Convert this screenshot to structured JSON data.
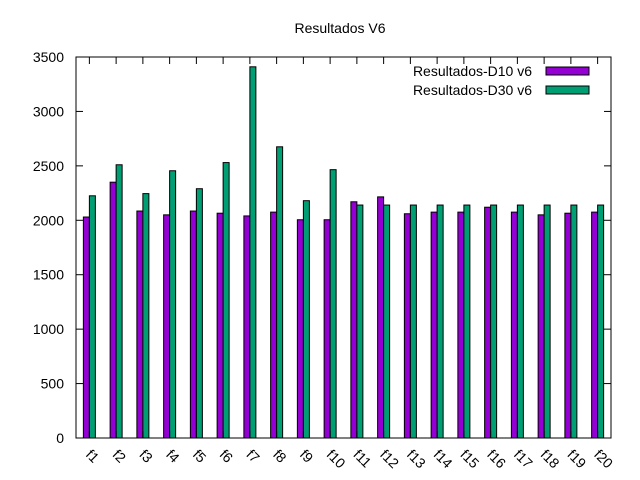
{
  "chart_data": {
    "type": "bar",
    "title": "Resultados V6",
    "xlabel": "",
    "ylabel": "",
    "ylim": [
      0,
      3500
    ],
    "yticks": [
      0,
      500,
      1000,
      1500,
      2000,
      2500,
      3000,
      3500
    ],
    "grid": false,
    "legend_position": "top-right",
    "categories": [
      "f1",
      "f2",
      "f3",
      "f4",
      "f5",
      "f6",
      "f7",
      "f8",
      "f9",
      "f10",
      "f11",
      "f12",
      "f13",
      "f14",
      "f15",
      "f16",
      "f17",
      "f18",
      "f19",
      "f20"
    ],
    "series": [
      {
        "name": "Resultados-D10 v6",
        "color": "#9400D3",
        "values": [
          2030,
          2350,
          2085,
          2050,
          2085,
          2065,
          2040,
          2075,
          2005,
          2005,
          2170,
          2215,
          2060,
          2075,
          2075,
          2120,
          2075,
          2050,
          2065,
          2075
        ]
      },
      {
        "name": "Resultados-D30 v6",
        "color": "#009E73",
        "values": [
          2225,
          2510,
          2245,
          2455,
          2290,
          2530,
          3410,
          2675,
          2180,
          2465,
          2140,
          2140,
          2140,
          2140,
          2140,
          2140,
          2140,
          2140,
          2140,
          2140
        ]
      }
    ]
  }
}
